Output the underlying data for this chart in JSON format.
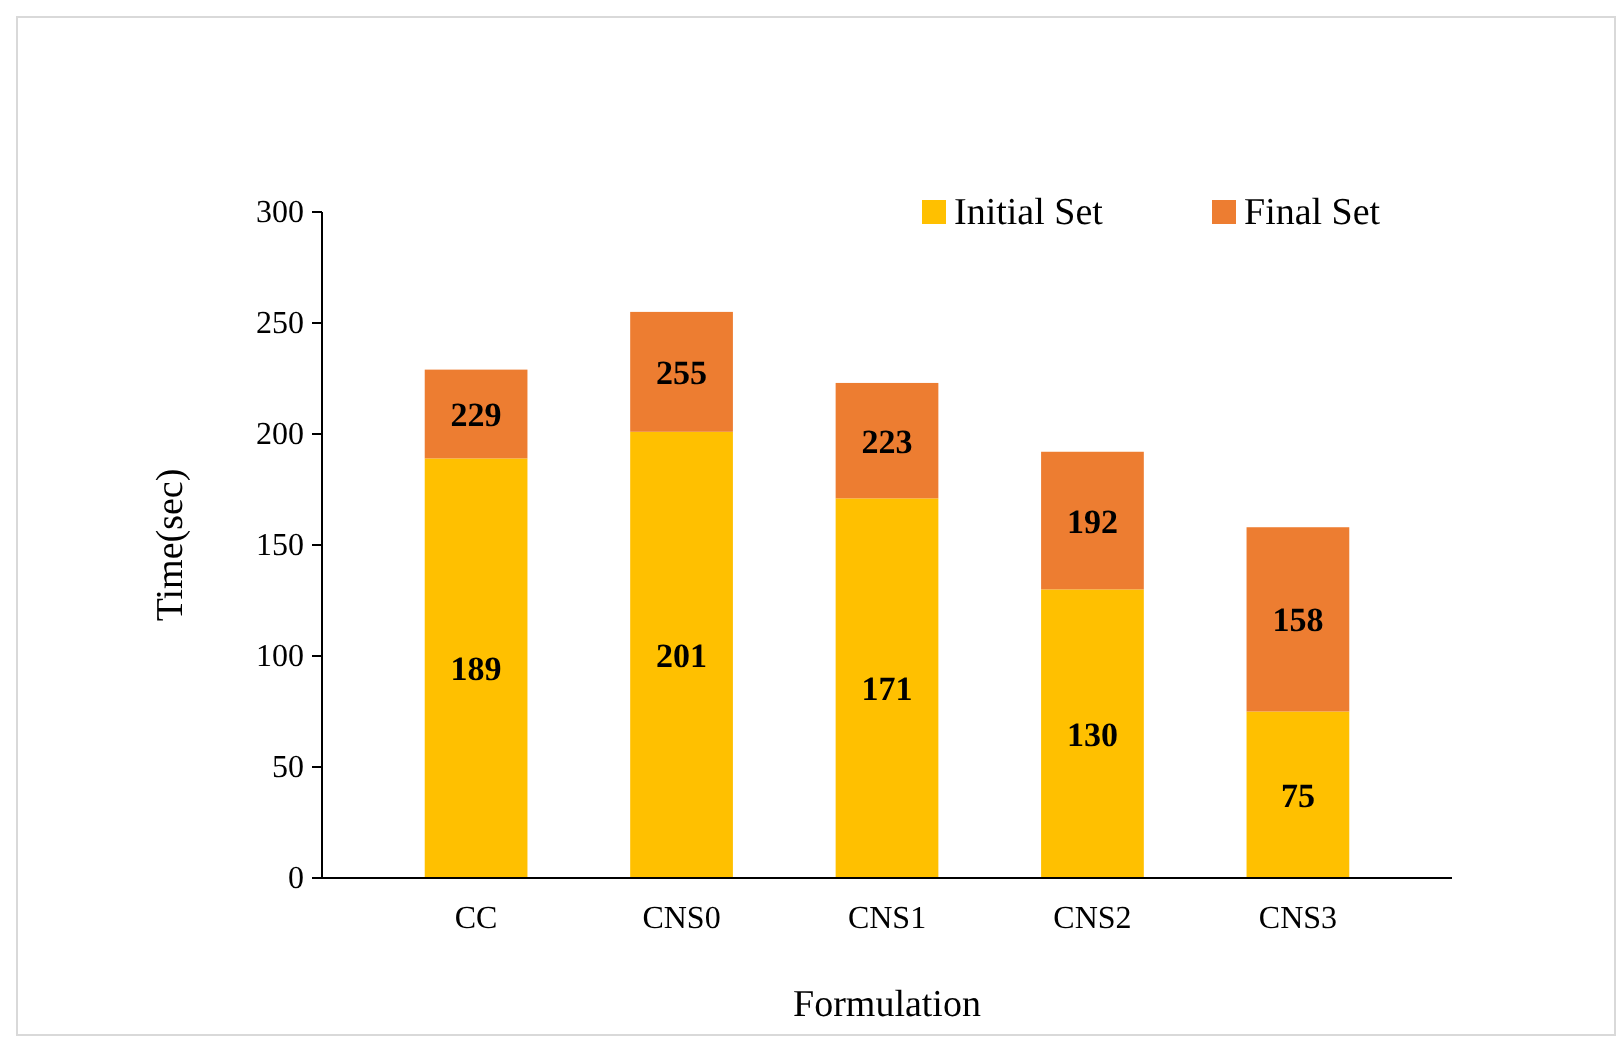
{
  "chart_data": {
    "type": "bar",
    "stacked": true,
    "xlabel": "Formulation",
    "ylabel": "Time(sec)",
    "categories": [
      "CC",
      "CNS0",
      "CNS1",
      "CNS2",
      "CNS3"
    ],
    "series": [
      {
        "name": "Initial Set",
        "color": "#ffc000",
        "values": [
          189,
          201,
          171,
          130,
          75
        ],
        "value_labels": [
          "189",
          "201",
          "171",
          "130",
          "75"
        ]
      },
      {
        "name": "Final Set",
        "color": "#ed7d31",
        "values": [
          40,
          54,
          52,
          62,
          83
        ]
      }
    ],
    "totals": [
      "229",
      "255",
      "223",
      "192",
      "158"
    ],
    "ylim": [
      0,
      300
    ],
    "yticks": [
      0,
      50,
      100,
      150,
      200,
      250,
      300
    ],
    "legend": "top right",
    "grid": false
  }
}
